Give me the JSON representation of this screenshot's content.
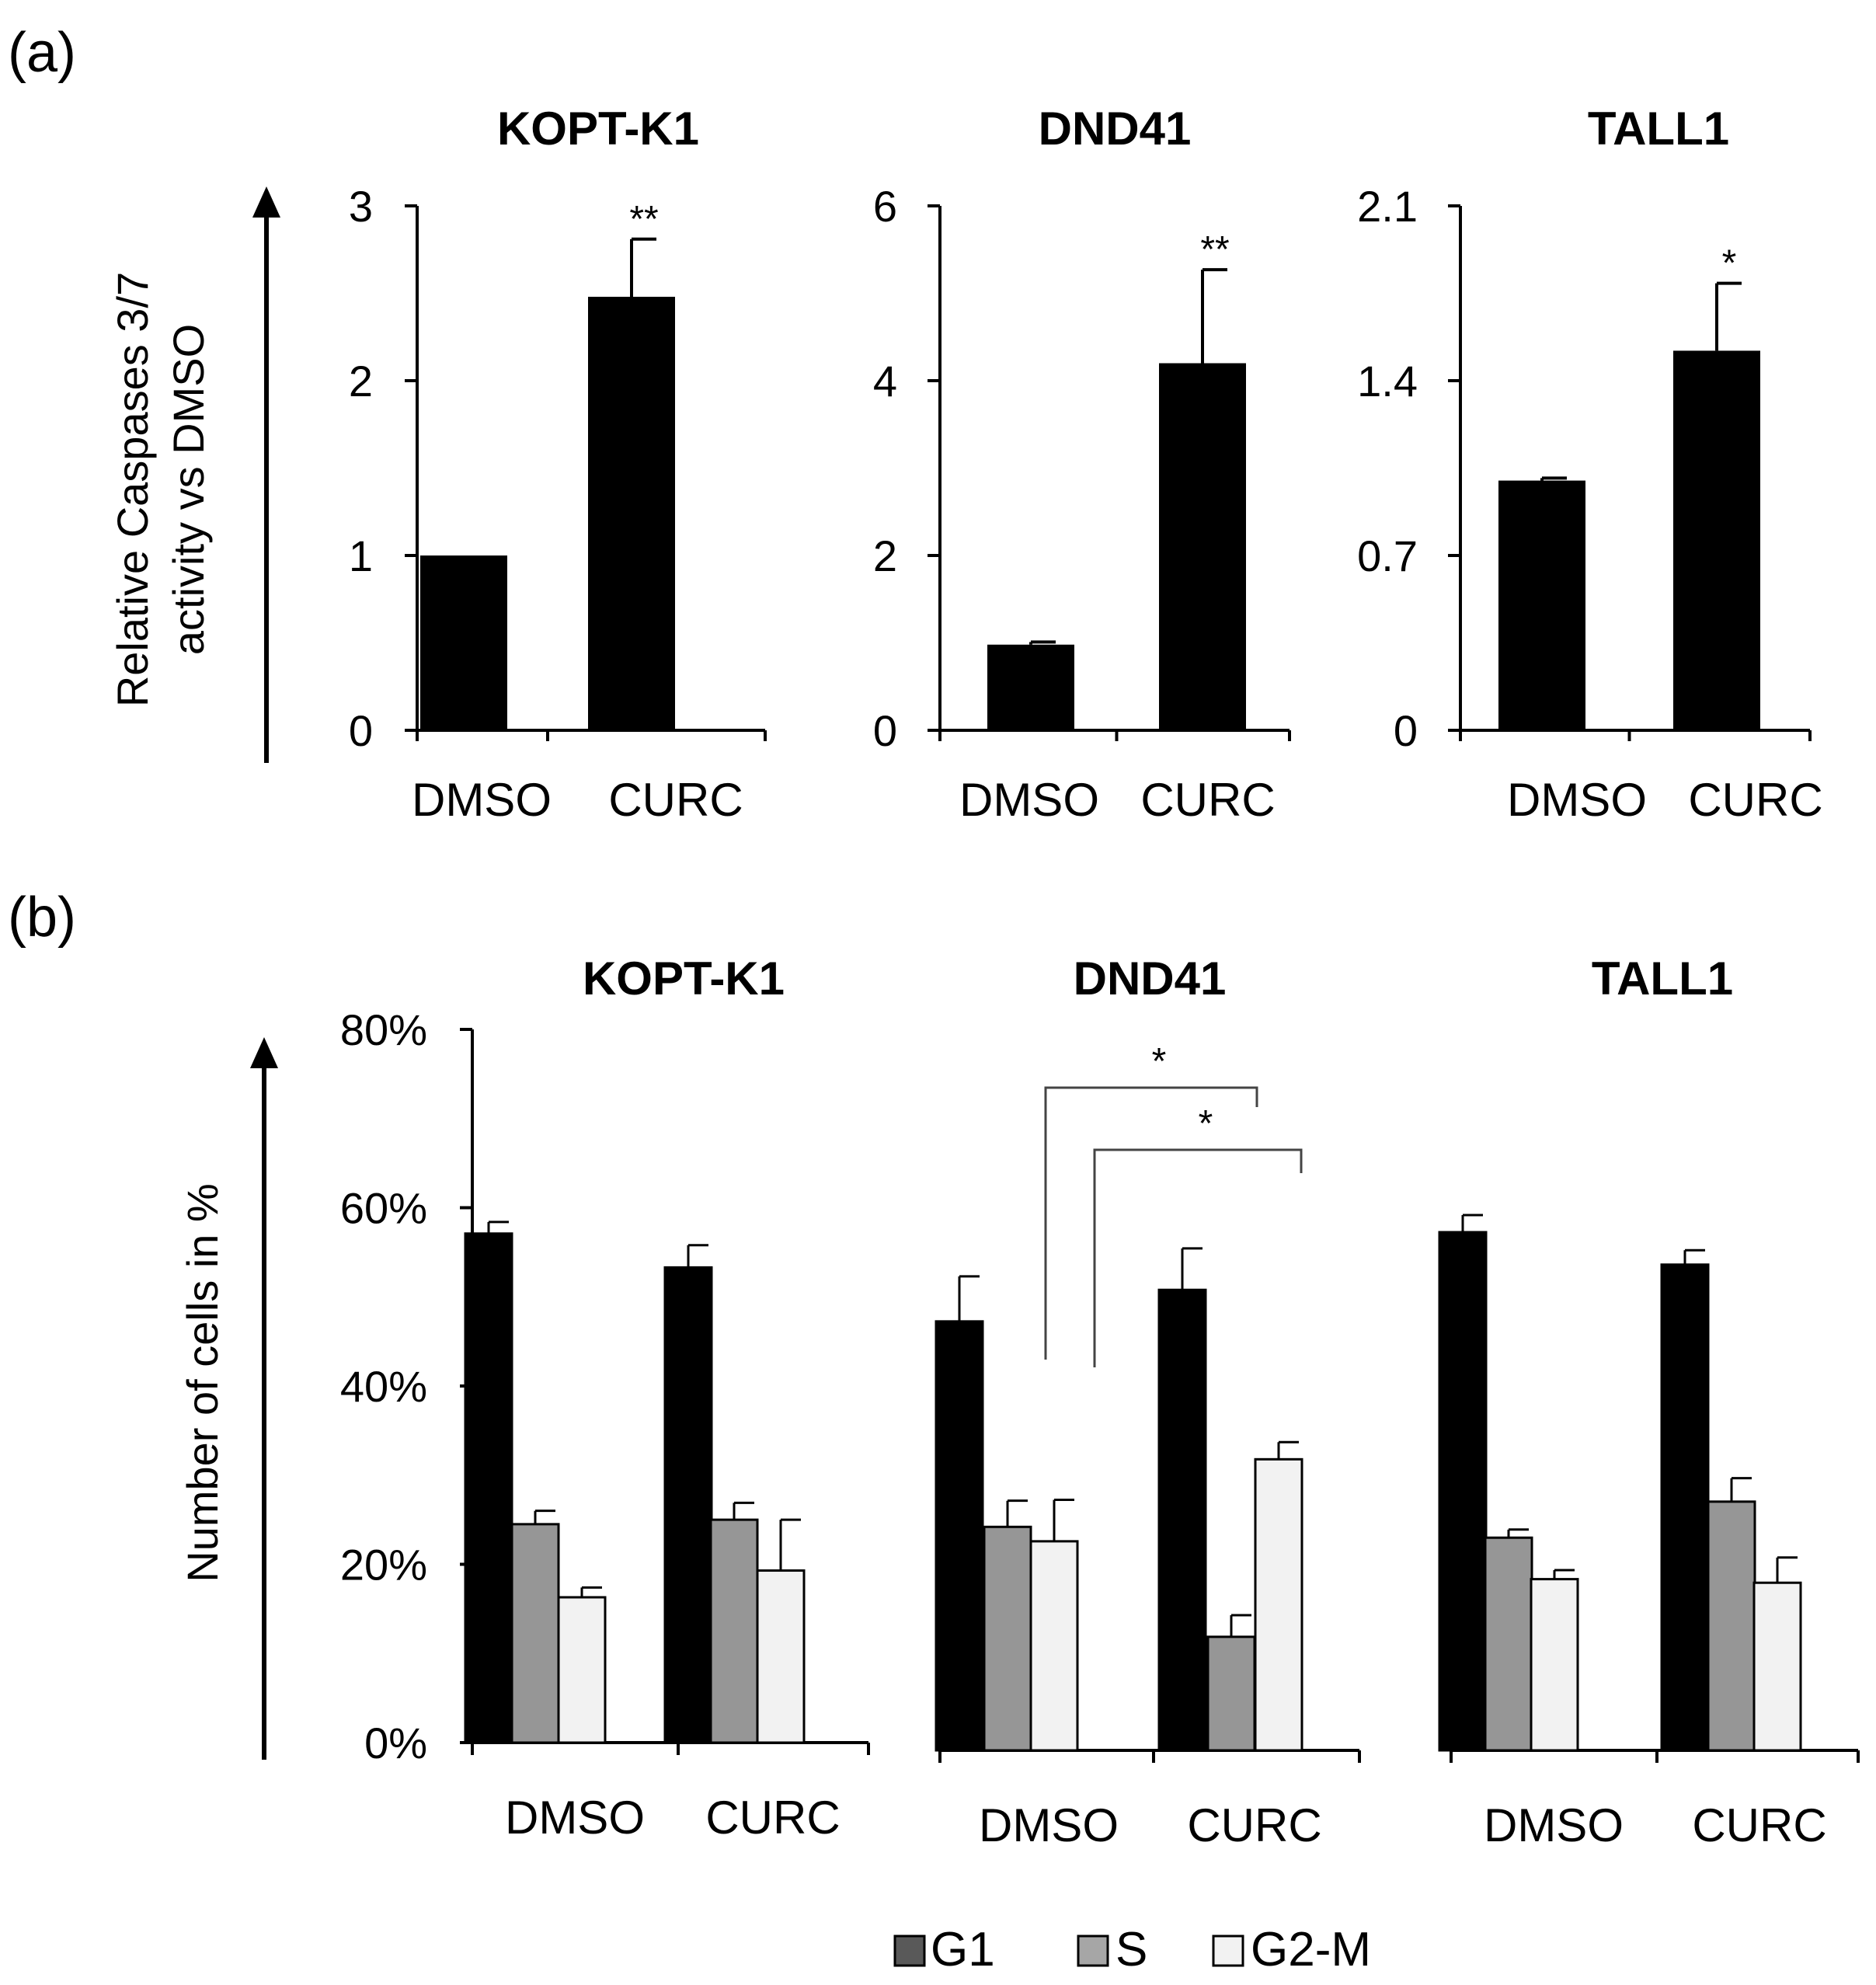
{
  "colors": {
    "CURC": "#000000",
    "DMSO": "#000000",
    "G1": "#000000",
    "S": "#969696",
    "G2-M": "#f2f2f2",
    "G1_legend": "#595959",
    "S_legend": "#a6a6a6",
    "G2-M_legend": "#f2f2f2",
    "outline": "#000000"
  },
  "panels": {
    "a": {
      "label": "(a)",
      "ylabel_line1": "Relative Caspases 3/7",
      "ylabel_line2": "activity vs DMSO"
    },
    "b": {
      "label": "(b)",
      "ylabel": "Number of cells in %"
    }
  },
  "legend": {
    "items": [
      "G1",
      "S",
      "G2-M"
    ]
  },
  "chart_data": [
    {
      "type": "bar",
      "panel": "a",
      "title": "KOPT-K1",
      "categories": [
        "DMSO",
        "CURC"
      ],
      "values": [
        1.0,
        2.48
      ],
      "errors": [
        0,
        0.33
      ],
      "significance": [
        "",
        "**"
      ],
      "ylim": [
        0,
        3
      ],
      "yticks": [
        "0",
        "1",
        "2",
        "3"
      ],
      "ytick_values": [
        0,
        1,
        2,
        3
      ]
    },
    {
      "type": "bar",
      "panel": "a",
      "title": "DND41",
      "categories": [
        "DMSO",
        "CURC"
      ],
      "values": [
        0.98,
        4.2
      ],
      "errors": [
        0.03,
        1.07
      ],
      "significance": [
        "",
        "**"
      ],
      "ylim": [
        0,
        6
      ],
      "yticks": [
        "0",
        "2",
        "4",
        "6"
      ],
      "ytick_values": [
        0,
        2,
        4,
        6
      ]
    },
    {
      "type": "bar",
      "panel": "a",
      "title": "TALL1",
      "categories": [
        "DMSO",
        "CURC"
      ],
      "values": [
        1.0,
        1.52
      ],
      "errors": [
        0.01,
        0.27
      ],
      "significance": [
        "",
        "*"
      ],
      "ylim": [
        0,
        2.1
      ],
      "yticks": [
        "0",
        "0.7",
        "1.4",
        "2.1"
      ],
      "ytick_values": [
        0,
        0.7,
        1.4,
        2.1
      ]
    },
    {
      "type": "bar",
      "panel": "b",
      "title": "KOPT-K1",
      "categories": [
        "DMSO",
        "CURC"
      ],
      "ylim": [
        0,
        80
      ],
      "yticks": [
        "0%",
        "20%",
        "40%",
        "60%",
        "80%"
      ],
      "ytick_values": [
        0,
        20,
        40,
        60,
        80
      ],
      "series": [
        {
          "name": "G1",
          "values": [
            57.1,
            53.3
          ],
          "errors": [
            1.3,
            2.5
          ]
        },
        {
          "name": "S",
          "values": [
            24.5,
            25.0
          ],
          "errors": [
            1.5,
            1.9
          ]
        },
        {
          "name": "G2-M",
          "values": [
            16.3,
            19.3
          ],
          "errors": [
            1.1,
            5.7
          ]
        }
      ]
    },
    {
      "type": "bar",
      "panel": "b",
      "title": "DND41",
      "categories": [
        "DMSO",
        "CURC"
      ],
      "ylim": [
        0,
        80
      ],
      "series": [
        {
          "name": "G1",
          "values": [
            47.6,
            51.1
          ],
          "errors": [
            5.0,
            4.6
          ]
        },
        {
          "name": "S",
          "values": [
            24.8,
            12.6
          ],
          "errors": [
            2.9,
            2.4
          ]
        },
        {
          "name": "G2-M",
          "values": [
            23.2,
            32.3
          ],
          "errors": [
            4.6,
            1.9
          ]
        }
      ],
      "annotations": [
        {
          "text": "*",
          "from": "DMSO S",
          "to": "CURC S"
        },
        {
          "text": "*",
          "from": "DMSO G2-M",
          "to": "CURC G2-M"
        }
      ]
    },
    {
      "type": "bar",
      "panel": "b",
      "title": "TALL1",
      "categories": [
        "DMSO",
        "CURC"
      ],
      "ylim": [
        0,
        80
      ],
      "series": [
        {
          "name": "G1",
          "values": [
            57.5,
            53.9
          ],
          "errors": [
            1.9,
            1.6
          ]
        },
        {
          "name": "S",
          "values": [
            23.6,
            27.6
          ],
          "errors": [
            0.9,
            2.6
          ]
        },
        {
          "name": "G2-M",
          "values": [
            19.0,
            18.6
          ],
          "errors": [
            1.0,
            2.8
          ]
        }
      ]
    }
  ]
}
